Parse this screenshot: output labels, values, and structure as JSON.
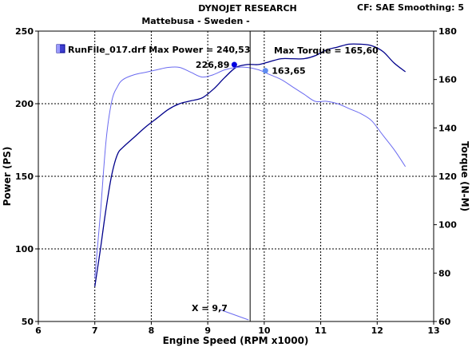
{
  "header": {
    "title": "DYNOJET RESEARCH",
    "subtitle": "Mattebusa - Sweden -",
    "correction": "CF: SAE  Smoothing: 5"
  },
  "legend": {
    "label": "RunFile_017.drf Max Power = 240,53",
    "torque_label": "Max Torque = 165,60"
  },
  "cursor_label": "X = 9,7",
  "colors": {
    "power": "#00008b",
    "torque": "#6a6af0",
    "marker_power": "#0000e0",
    "marker_torque": "#5f8cf0",
    "cursor": "#000000",
    "grid": "#000000",
    "background": "#ffffff"
  },
  "chart_data": {
    "type": "line",
    "title": "DYNOJET RESEARCH",
    "xlabel": "Engine Speed (RPM x1000)",
    "ylabel": "Power (PS)",
    "y2label": "Torque (N-M)",
    "xlim": [
      6,
      13
    ],
    "ylim": [
      50,
      250
    ],
    "y2lim": [
      60,
      180
    ],
    "x_ticks": [
      6,
      7,
      8,
      9,
      10,
      11,
      12,
      13
    ],
    "y_ticks": [
      50,
      100,
      150,
      200,
      250
    ],
    "y2_ticks": [
      60,
      80,
      100,
      120,
      140,
      160,
      180
    ],
    "grid": true,
    "cursor_x": 9.75,
    "series": [
      {
        "name": "Power",
        "axis": "left",
        "x": [
          7.0,
          7.1,
          7.2,
          7.3,
          7.4,
          7.5,
          7.7,
          7.9,
          8.1,
          8.3,
          8.5,
          8.7,
          8.9,
          9.1,
          9.3,
          9.5,
          9.7,
          9.9,
          10.1,
          10.3,
          10.5,
          10.7,
          10.9,
          11.1,
          11.3,
          11.5,
          11.7,
          11.9,
          12.1,
          12.3,
          12.5
        ],
        "values": [
          74,
          100,
          128,
          151,
          165,
          170,
          177,
          184,
          190,
          196,
          200,
          202,
          204,
          210,
          218,
          225,
          227,
          227,
          229,
          231,
          231,
          231,
          233,
          237,
          239,
          241,
          241,
          240,
          236,
          228,
          222
        ]
      },
      {
        "name": "Torque",
        "axis": "right",
        "x": [
          7.0,
          7.1,
          7.2,
          7.3,
          7.4,
          7.5,
          7.7,
          7.9,
          8.1,
          8.3,
          8.5,
          8.7,
          8.9,
          9.1,
          9.3,
          9.5,
          9.7,
          9.9,
          10.1,
          10.3,
          10.5,
          10.7,
          10.9,
          11.1,
          11.3,
          11.5,
          11.7,
          11.9,
          12.1,
          12.3,
          12.5
        ],
        "values": [
          78,
          105,
          135,
          151,
          157,
          160,
          162,
          163,
          164,
          165,
          165,
          163,
          161,
          162,
          164,
          165,
          165,
          164,
          162,
          160,
          157,
          154,
          151,
          151,
          150,
          148,
          146,
          143,
          137,
          131,
          124
        ]
      }
    ],
    "annotations": [
      {
        "label": "226,89",
        "series": "Power",
        "x": 9.47,
        "y": 226.89
      },
      {
        "label": "163,65",
        "series": "Torque",
        "x": 10.02,
        "y": 163.65
      }
    ]
  }
}
